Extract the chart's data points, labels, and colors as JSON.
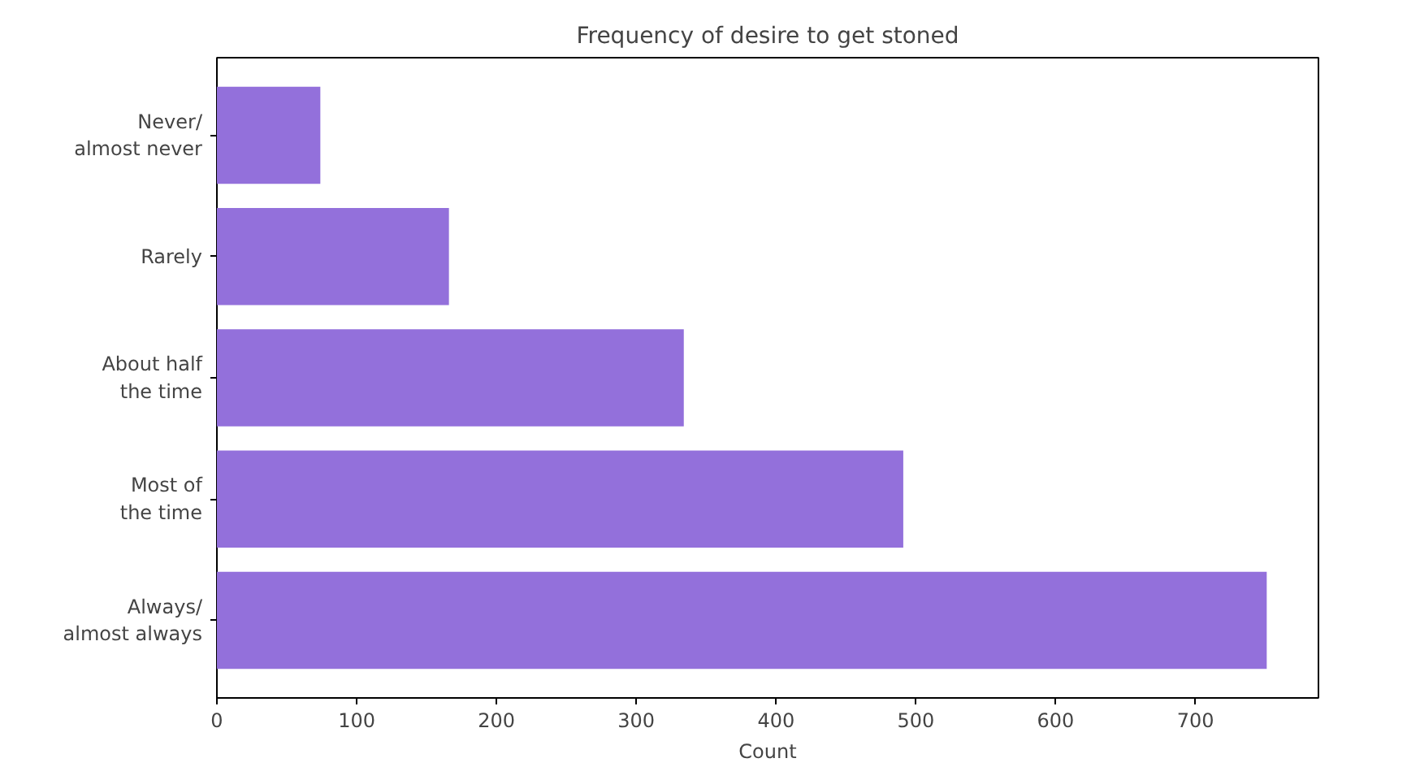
{
  "chart_data": {
    "type": "bar",
    "orientation": "horizontal",
    "title": "Frequency of desire to get stoned",
    "xlabel": "Count",
    "categories": [
      "Never/\nalmost never",
      "Rarely",
      "About half\nthe time",
      "Most of\nthe time",
      "Always/\nalmost always"
    ],
    "values": [
      74,
      166,
      334,
      491,
      751
    ],
    "color": "#9370db",
    "xlim": [
      0,
      788
    ],
    "xticks": [
      0,
      100,
      200,
      300,
      400,
      500,
      600,
      700
    ],
    "grid": false
  }
}
